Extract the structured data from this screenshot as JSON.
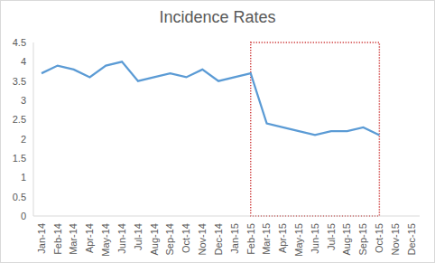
{
  "chart_data": {
    "type": "line",
    "title": "Incidence Rates",
    "categories": [
      "Jan-14",
      "Feb-14",
      "Mar-14",
      "Apr-14",
      "May-14",
      "Jun-14",
      "Jul-14",
      "Aug-14",
      "Sep-14",
      "Oct-14",
      "Nov-14",
      "Dec-14",
      "Jan-15",
      "Feb-15",
      "Mar-15",
      "Apr-15",
      "May-15",
      "Jun-15",
      "Jul-15",
      "Aug-15",
      "Sep-15",
      "Oct-15",
      "Nov-15",
      "Dec-15"
    ],
    "values": [
      3.7,
      3.9,
      3.8,
      3.6,
      3.9,
      4.0,
      3.5,
      3.6,
      3.7,
      3.6,
      3.8,
      3.5,
      3.6,
      3.7,
      2.4,
      2.3,
      2.2,
      2.1,
      2.2,
      2.2,
      2.3,
      2.1,
      null,
      null
    ],
    "color": "#5b9bd5",
    "ylim": [
      0,
      4.5
    ],
    "yticks": [
      0,
      0.5,
      1,
      1.5,
      2,
      2.5,
      3,
      3.5,
      4,
      4.5
    ],
    "grid": false
  }
}
